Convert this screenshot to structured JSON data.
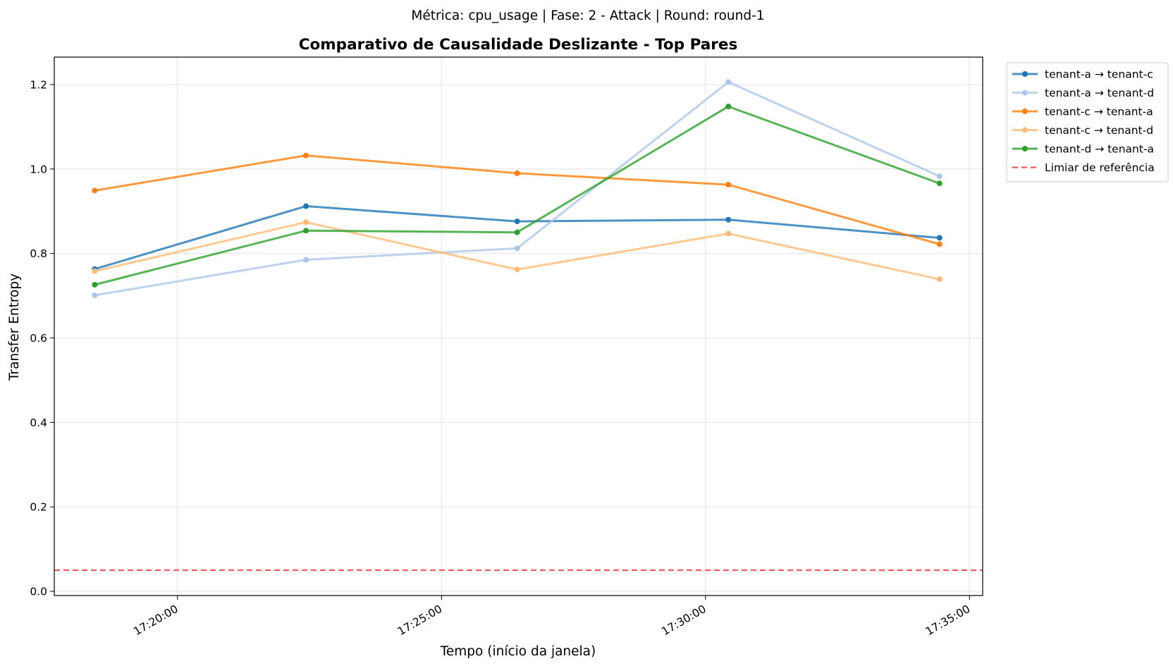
{
  "suptitle": "Métrica: cpu_usage | Fase: 2 - Attack | Round: round-1",
  "chart_data": {
    "type": "line",
    "title": "Comparativo de Causalidade Deslizante - Top Pares",
    "xlabel": "Tempo (início da janela)",
    "ylabel": "Transfer Entropy",
    "x": [
      "17:18:26",
      "17:22:26",
      "17:26:26",
      "17:30:26",
      "17:34:26"
    ],
    "xlim": [
      "17:17:40",
      "17:35:15"
    ],
    "ylim": [
      -0.01,
      1.265
    ],
    "xticks": [
      "17:20:00",
      "17:25:00",
      "17:30:00",
      "17:35:00"
    ],
    "yticks": [
      "0.0",
      "0.2",
      "0.4",
      "0.6",
      "0.8",
      "1.0",
      "1.2"
    ],
    "series": [
      {
        "name": "tenant-a → tenant-c",
        "color": "#1f77b4",
        "values": [
          0.763,
          0.912,
          0.876,
          0.88,
          0.837
        ]
      },
      {
        "name": "tenant-a → tenant-d",
        "color": "#aec7e8",
        "values": [
          0.701,
          0.785,
          0.812,
          1.206,
          0.983
        ]
      },
      {
        "name": "tenant-c → tenant-a",
        "color": "#ff7f0e",
        "values": [
          0.949,
          1.032,
          0.99,
          0.963,
          0.822
        ]
      },
      {
        "name": "tenant-c → tenant-d",
        "color": "#ffbb78",
        "values": [
          0.758,
          0.874,
          0.762,
          0.847,
          0.739
        ]
      },
      {
        "name": "tenant-d → tenant-a",
        "color": "#2ca02c",
        "values": [
          0.726,
          0.854,
          0.85,
          1.148,
          0.966
        ]
      }
    ],
    "reference_line": {
      "name": "Limiar de referência",
      "value": 0.05,
      "color": "#ef4444",
      "style": "dashed"
    },
    "grid": true,
    "legend_position": "outside-top-right"
  }
}
